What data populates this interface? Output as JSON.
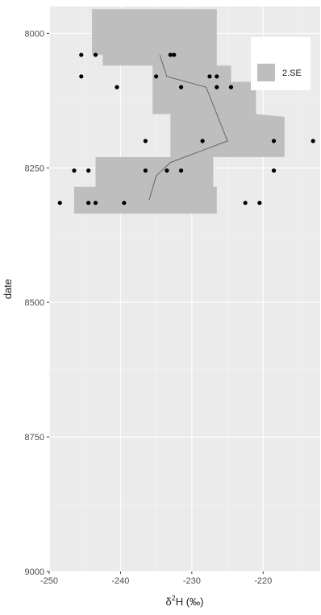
{
  "chart_data": {
    "type": "scatter",
    "title": "",
    "xlabel": {
      "prefix": "δ",
      "superscript": "2",
      "main": "H",
      "unit": "(‰)"
    },
    "ylabel": "date",
    "xlim": [
      -250,
      -212
    ],
    "ylim": [
      7950,
      9000
    ],
    "y_reversed": true,
    "x_ticks": [
      -250,
      -240,
      -230,
      -220
    ],
    "y_ticks": [
      8000,
      8250,
      8500,
      8750,
      9000
    ],
    "grid": true,
    "colors": {
      "panel": "#ebebeb",
      "grid_major": "#ffffff",
      "ribbon": "#bebebe",
      "points": "#000000",
      "line": "#666666",
      "tick": "#333333",
      "legend_key": "#bebebe"
    },
    "legend": {
      "position": "top-right",
      "entries": [
        "2.SE"
      ]
    },
    "ribbon": [
      {
        "y": 7955,
        "xmin": -244,
        "xmax": -226.5
      },
      {
        "y": 8040,
        "xmin": -244,
        "xmax": -226.5
      },
      {
        "y": 8040,
        "xmin": -242.5,
        "xmax": -226.5
      },
      {
        "y": 8060,
        "xmin": -242.5,
        "xmax": -226.5
      },
      {
        "y": 8060,
        "xmin": -235.5,
        "xmax": -224.5
      },
      {
        "y": 8090,
        "xmin": -235.5,
        "xmax": -224.5
      },
      {
        "y": 8090,
        "xmin": -235.5,
        "xmax": -221
      },
      {
        "y": 8150,
        "xmin": -235.5,
        "xmax": -221
      },
      {
        "y": 8150,
        "xmin": -233,
        "xmax": -221
      },
      {
        "y": 8155,
        "xmin": -233,
        "xmax": -217
      },
      {
        "y": 8230,
        "xmin": -233,
        "xmax": -217
      },
      {
        "y": 8230,
        "xmin": -243.5,
        "xmax": -227
      },
      {
        "y": 8285,
        "xmin": -243.5,
        "xmax": -227
      },
      {
        "y": 8285,
        "xmin": -246.5,
        "xmax": -226.5
      },
      {
        "y": 8335,
        "xmin": -246.5,
        "xmax": -226.5
      }
    ],
    "line": [
      {
        "x": -234.5,
        "y": 8040
      },
      {
        "x": -233.5,
        "y": 8080
      },
      {
        "x": -228,
        "y": 8100
      },
      {
        "x": -225,
        "y": 8200
      },
      {
        "x": -233,
        "y": 8240
      },
      {
        "x": -235,
        "y": 8265
      },
      {
        "x": -236,
        "y": 8310
      }
    ],
    "points": [
      {
        "x": -245.5,
        "y": 8040
      },
      {
        "x": -243.5,
        "y": 8040
      },
      {
        "x": -233,
        "y": 8040
      },
      {
        "x": -232.5,
        "y": 8040
      },
      {
        "x": -245.5,
        "y": 8080
      },
      {
        "x": -235,
        "y": 8080
      },
      {
        "x": -227.5,
        "y": 8080
      },
      {
        "x": -226.5,
        "y": 8080
      },
      {
        "x": -240.5,
        "y": 8100
      },
      {
        "x": -231.5,
        "y": 8100
      },
      {
        "x": -226.5,
        "y": 8100
      },
      {
        "x": -224.5,
        "y": 8100
      },
      {
        "x": -218.5,
        "y": 8100
      },
      {
        "x": -236.5,
        "y": 8200
      },
      {
        "x": -228.5,
        "y": 8200
      },
      {
        "x": -218.5,
        "y": 8200
      },
      {
        "x": -213,
        "y": 8200
      },
      {
        "x": -246.5,
        "y": 8255
      },
      {
        "x": -244.5,
        "y": 8255
      },
      {
        "x": -236.5,
        "y": 8255
      },
      {
        "x": -233.5,
        "y": 8255
      },
      {
        "x": -231.5,
        "y": 8255
      },
      {
        "x": -218.5,
        "y": 8255
      },
      {
        "x": -248.5,
        "y": 8315
      },
      {
        "x": -244.5,
        "y": 8315
      },
      {
        "x": -243.5,
        "y": 8315
      },
      {
        "x": -239.5,
        "y": 8315
      },
      {
        "x": -222.5,
        "y": 8315
      },
      {
        "x": -220.5,
        "y": 8315
      }
    ]
  }
}
